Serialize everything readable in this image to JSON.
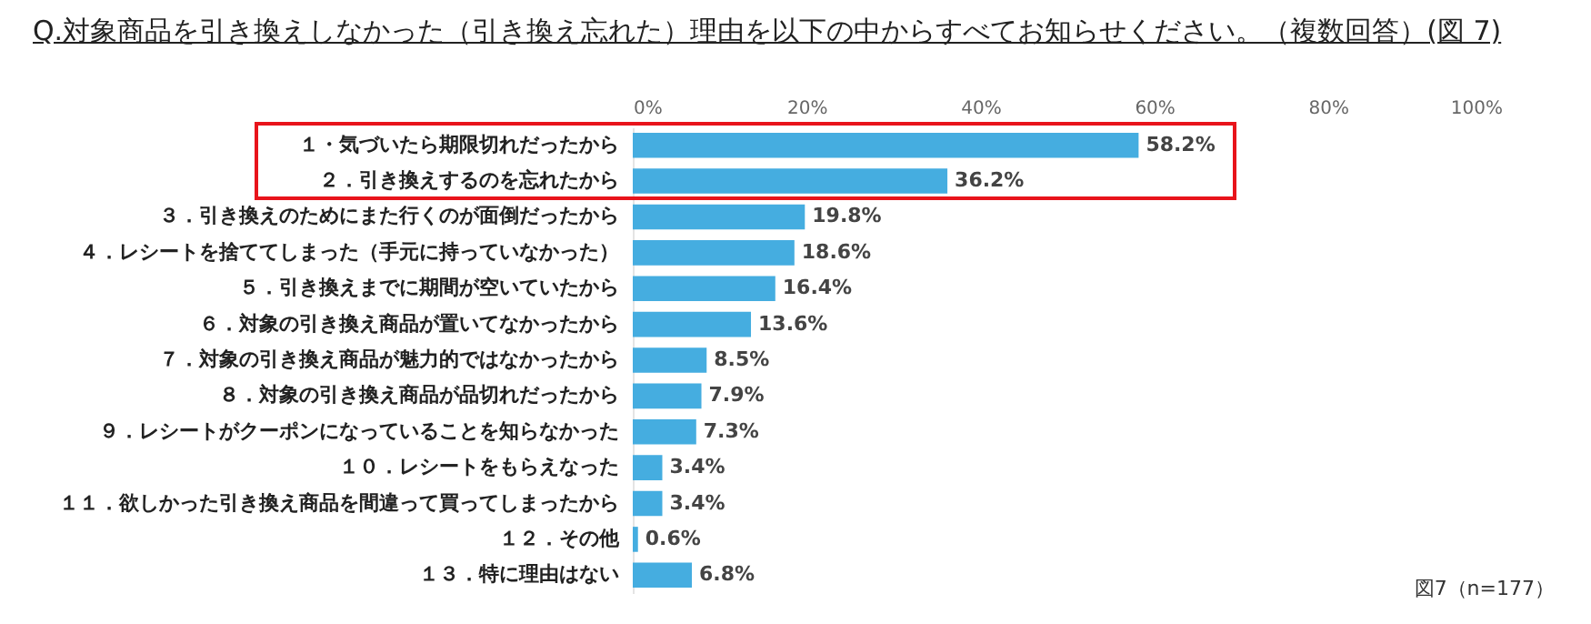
{
  "chart_data": {
    "type": "bar",
    "orientation": "horizontal",
    "title": "Q.対象商品を引き換えしなかった（引き換え忘れた）理由を以下の中からすべてお知らせください。（複数回答）(図 7)",
    "categories": [
      "１・気づいたら期限切れだったから",
      "２．引き換えするのを忘れたから",
      "３．引き換えのためにまた行くのが面倒だったから",
      "４．レシートを捨ててしまった（手元に持っていなかった）",
      "５．引き換えまでに期間が空いていたから",
      "６．対象の引き換え商品が置いてなかったから",
      "７．対象の引き換え商品が魅力的ではなかったから",
      "８．対象の引き換え商品が品切れだったから",
      "９．レシートがクーポンになっていることを知らなかった",
      "１０．レシートをもらえなった",
      "１１．欲しかった引き換え商品を間違って買ってしまったから",
      "１２．その他",
      "１３．特に理由はない"
    ],
    "values": [
      58.2,
      36.2,
      19.8,
      18.6,
      16.4,
      13.6,
      8.5,
      7.9,
      7.3,
      3.4,
      3.4,
      0.6,
      6.8
    ],
    "value_labels": [
      "58.2%",
      "36.2%",
      "19.8%",
      "18.6%",
      "16.4%",
      "13.6%",
      "8.5%",
      "7.9%",
      "7.3%",
      "3.4%",
      "3.4%",
      "0.6%",
      "6.8%"
    ],
    "color": "#45ade0",
    "xlim": [
      0,
      100
    ],
    "xticks": [
      {
        "value": 0,
        "label": "0%"
      },
      {
        "value": 20,
        "label": "20%"
      },
      {
        "value": 40,
        "label": "40%"
      },
      {
        "value": 60,
        "label": "60%"
      },
      {
        "value": 80,
        "label": "80%"
      },
      {
        "value": 100,
        "label": "100%"
      }
    ],
    "annotations": [
      "図7（n=177）"
    ]
  }
}
